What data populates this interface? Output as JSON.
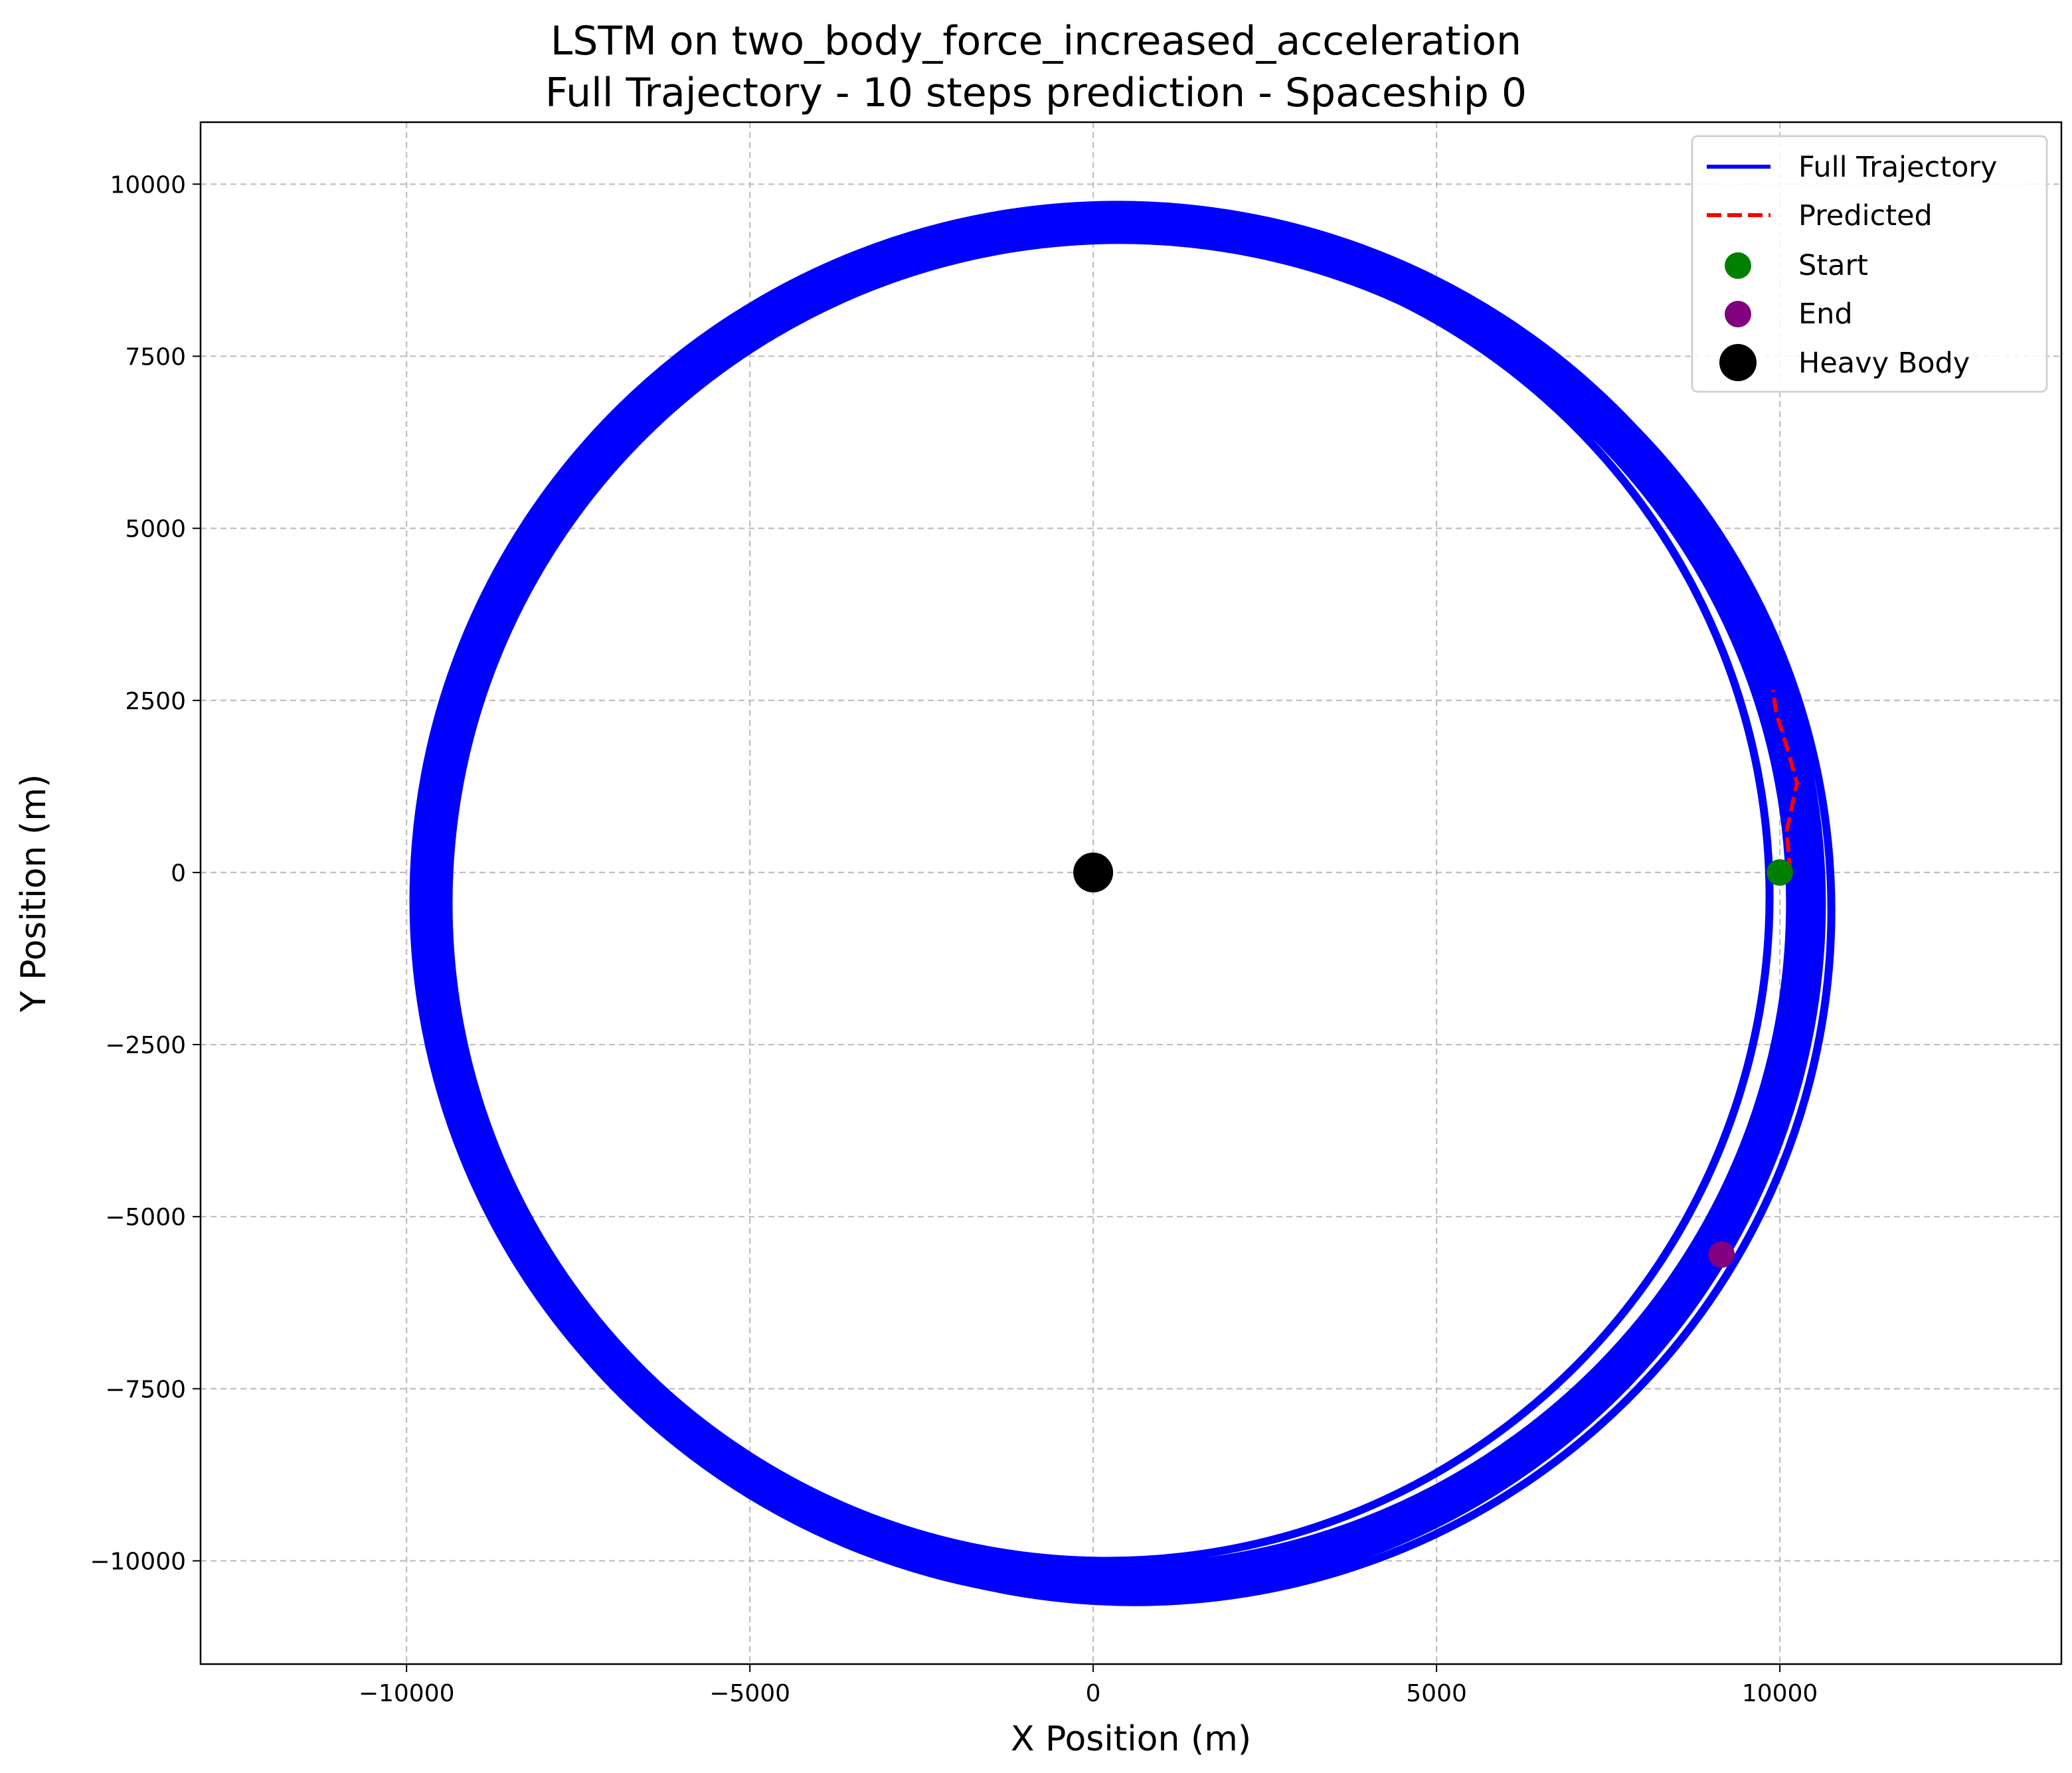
{
  "chart_data": {
    "type": "line",
    "title": "LSTM on two_body_force_increased_acceleration",
    "subtitle": "Full Trajectory - 10 steps prediction - Spaceship 0",
    "xlabel": "X Position (m)",
    "ylabel": "Y Position (m)",
    "xlim": [
      -13000,
      14100
    ],
    "ylim": [
      -11500,
      10900
    ],
    "xticks": [
      -10000,
      -5000,
      0,
      5000,
      10000
    ],
    "xtick_labels": [
      "−10000",
      "−5000",
      "0",
      "5000",
      "10000"
    ],
    "yticks": [
      -10000,
      -7500,
      -5000,
      -2500,
      0,
      2500,
      5000,
      7500,
      10000
    ],
    "ytick_labels": [
      "−10000",
      "−7500",
      "−5000",
      "−2500",
      "0",
      "2500",
      "5000",
      "7500",
      "10000"
    ],
    "grid": true,
    "legend_position": "top-right",
    "series": [
      {
        "name": "Full Trajectory",
        "style": "solid",
        "color": "#0000ff",
        "description": "Multiple overlapping near-circular orbits around the origin, radius about 9500-10500 m, slightly offset; loop starts at (10000, 0) and ends at (9200, -5550)",
        "orbit_samples": [
          {
            "cx": 350,
            "cy": -400,
            "rx": 10050,
            "ry": 9950
          },
          {
            "cx": 600,
            "cy": -550,
            "rx": 10150,
            "ry": 10050
          },
          {
            "cx": 200,
            "cy": -350,
            "rx": 9650,
            "ry": 9650
          },
          {
            "cx": 450,
            "cy": -500,
            "rx": 9850,
            "ry": 9850
          },
          {
            "cx": 350,
            "cy": -400,
            "rx": 10250,
            "ry": 10100
          }
        ]
      },
      {
        "name": "Predicted",
        "style": "dashed",
        "color": "#ff0000",
        "x": [
          10150,
          10100,
          10250,
          10050,
          9950,
          9900
        ],
        "y": [
          0,
          600,
          1300,
          2000,
          2300,
          2650
        ]
      }
    ],
    "points": [
      {
        "name": "Start",
        "x": 10000,
        "y": 0,
        "color": "#008000"
      },
      {
        "name": "End",
        "x": 9150,
        "y": -5550,
        "color": "#800080"
      },
      {
        "name": "Heavy Body",
        "x": 0,
        "y": 0,
        "color": "#000000"
      }
    ]
  }
}
